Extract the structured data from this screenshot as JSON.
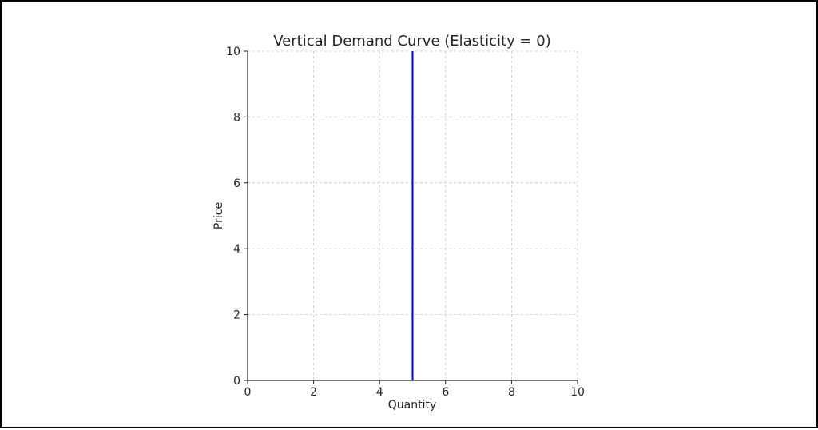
{
  "chart_data": {
    "type": "line",
    "title": "Vertical Demand Curve (Elasticity = 0)",
    "xlabel": "Quantity",
    "ylabel": "Price",
    "xlim": [
      0,
      10
    ],
    "ylim": [
      0,
      10
    ],
    "xticks": [
      0,
      2,
      4,
      6,
      8,
      10
    ],
    "yticks": [
      0,
      2,
      4,
      6,
      8,
      10
    ],
    "grid": true,
    "legend": "none",
    "series": [
      {
        "x": [
          5,
          5
        ],
        "y": [
          0,
          10
        ],
        "color": "#0000cc"
      }
    ]
  }
}
